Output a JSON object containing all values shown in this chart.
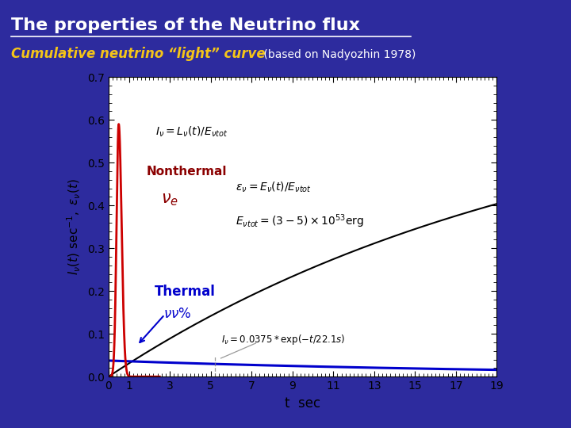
{
  "title": "The properties of the Neutrino flux",
  "subtitle_italic": "Cumulative neutrino “light” curve",
  "subtitle_normal": " (based on Nadyozhin 1978)",
  "bg_color": "#2d2b9e",
  "plot_bg": "#ffffff",
  "xlabel": "t  sec",
  "xlim": [
    0,
    19
  ],
  "ylim": [
    0.0,
    0.7
  ],
  "xticks": [
    0,
    1,
    3,
    5,
    7,
    9,
    11,
    13,
    15,
    17,
    19
  ],
  "yticks": [
    0.0,
    0.1,
    0.2,
    0.3,
    0.4,
    0.5,
    0.6,
    0.7
  ],
  "nonthermal_color": "#cc0000",
  "thermal_color": "#0000cc",
  "cumulative_color": "#000000",
  "thermal_exp_tau": 22.1,
  "thermal_exp_A": 0.0375,
  "title_color": "#ffffff",
  "subtitle_color": "#f5c518",
  "subtitle_normal_color": "#ffffff"
}
